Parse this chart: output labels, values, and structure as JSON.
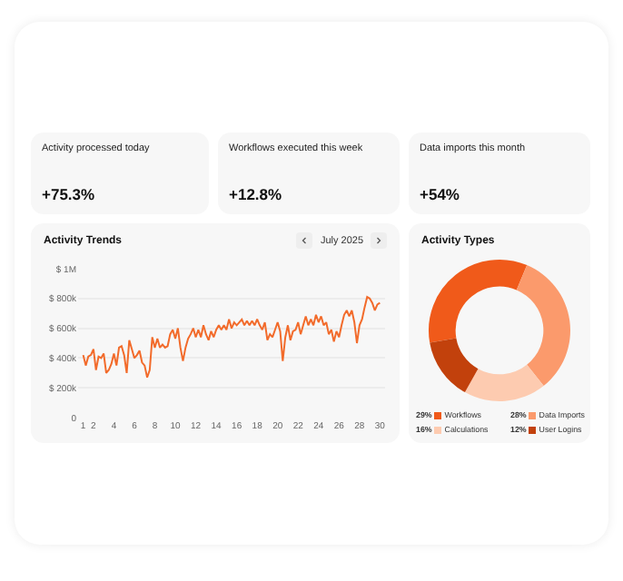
{
  "chart_data": [
    {
      "type": "other",
      "title": "Activity processed today",
      "annotations": [
        "+75.3%"
      ]
    },
    {
      "type": "other",
      "title": "Workflows executed this week",
      "annotations": [
        "+12.8%"
      ]
    },
    {
      "type": "other",
      "title": "Data imports this month",
      "annotations": [
        "+54%"
      ]
    },
    {
      "type": "line",
      "title": "Activity Trends",
      "annotations": [
        "July 2025"
      ],
      "color": "#f26b2b",
      "marker": "none",
      "line_style": "solid",
      "grid": "y",
      "x": [
        1,
        1.25,
        1.5,
        1.75,
        2,
        2.25,
        2.5,
        2.75,
        3,
        3.25,
        3.5,
        3.75,
        4,
        4.25,
        4.5,
        4.75,
        5,
        5.25,
        5.5,
        5.75,
        6,
        6.25,
        6.5,
        6.75,
        7,
        7.25,
        7.5,
        7.75,
        8,
        8.25,
        8.5,
        8.75,
        9,
        9.25,
        9.5,
        9.75,
        10,
        10.25,
        10.5,
        10.75,
        11,
        11.25,
        11.5,
        11.75,
        12,
        12.25,
        12.5,
        12.75,
        13,
        13.25,
        13.5,
        13.75,
        14,
        14.25,
        14.5,
        14.75,
        15,
        15.25,
        15.5,
        15.75,
        16,
        16.25,
        16.5,
        16.75,
        17,
        17.25,
        17.5,
        17.75,
        18,
        18.25,
        18.5,
        18.75,
        19,
        19.25,
        19.5,
        19.75,
        20,
        20.25,
        20.5,
        20.75,
        21,
        21.25,
        21.5,
        21.75,
        22,
        22.25,
        22.5,
        22.75,
        23,
        23.25,
        23.5,
        23.75,
        24,
        24.25,
        24.5,
        24.75,
        25,
        25.25,
        25.5,
        25.75,
        26,
        26.25,
        26.5,
        26.75,
        27,
        27.25,
        27.5,
        27.75,
        28,
        28.25,
        28.5,
        28.75,
        29,
        29.25,
        29.5,
        29.75,
        30
      ],
      "values": [
        420000,
        350000,
        410000,
        420000,
        460000,
        320000,
        410000,
        400000,
        430000,
        300000,
        320000,
        360000,
        430000,
        350000,
        470000,
        480000,
        420000,
        300000,
        520000,
        460000,
        400000,
        420000,
        450000,
        370000,
        350000,
        270000,
        320000,
        540000,
        470000,
        530000,
        470000,
        490000,
        470000,
        480000,
        560000,
        590000,
        530000,
        600000,
        470000,
        380000,
        470000,
        530000,
        560000,
        600000,
        540000,
        590000,
        540000,
        620000,
        560000,
        520000,
        580000,
        540000,
        590000,
        620000,
        590000,
        620000,
        590000,
        660000,
        600000,
        640000,
        620000,
        640000,
        660000,
        620000,
        650000,
        620000,
        650000,
        620000,
        660000,
        620000,
        590000,
        640000,
        520000,
        560000,
        540000,
        590000,
        640000,
        580000,
        380000,
        540000,
        620000,
        520000,
        580000,
        590000,
        640000,
        560000,
        620000,
        680000,
        620000,
        660000,
        620000,
        690000,
        640000,
        680000,
        620000,
        640000,
        560000,
        590000,
        510000,
        580000,
        540000,
        620000,
        690000,
        720000,
        680000,
        720000,
        640000,
        500000,
        620000,
        660000,
        740000,
        810000,
        800000,
        770000,
        720000,
        760000,
        770000
      ],
      "xlim": [
        0.5,
        30.5
      ],
      "xticks": [
        1,
        2,
        4,
        6,
        8,
        10,
        12,
        14,
        16,
        18,
        20,
        22,
        24,
        26,
        28,
        30
      ],
      "ylim": [
        0,
        1000000
      ],
      "yticks": [
        0,
        {
          "value": 200000,
          "label": "$ 200k"
        },
        {
          "value": 400000,
          "label": "$ 400k"
        },
        {
          "value": 600000,
          "label": "$ 600k"
        },
        {
          "value": 800000,
          "label": "$ 800k"
        },
        {
          "value": 1000000,
          "label": "$ 1M"
        }
      ]
    },
    {
      "type": "donut",
      "title": "Activity Types",
      "legend": "bottom",
      "categories": [
        "Workflows",
        "Data Imports",
        "Calculations",
        "User Logins"
      ],
      "values": [
        29,
        28,
        16,
        12
      ],
      "value_labels": [
        "29%",
        "28%",
        "16%",
        "12%"
      ],
      "colors": [
        "#f05a1a",
        "#fb9a6c",
        "#fdcbb0",
        "#c2410c"
      ]
    }
  ]
}
